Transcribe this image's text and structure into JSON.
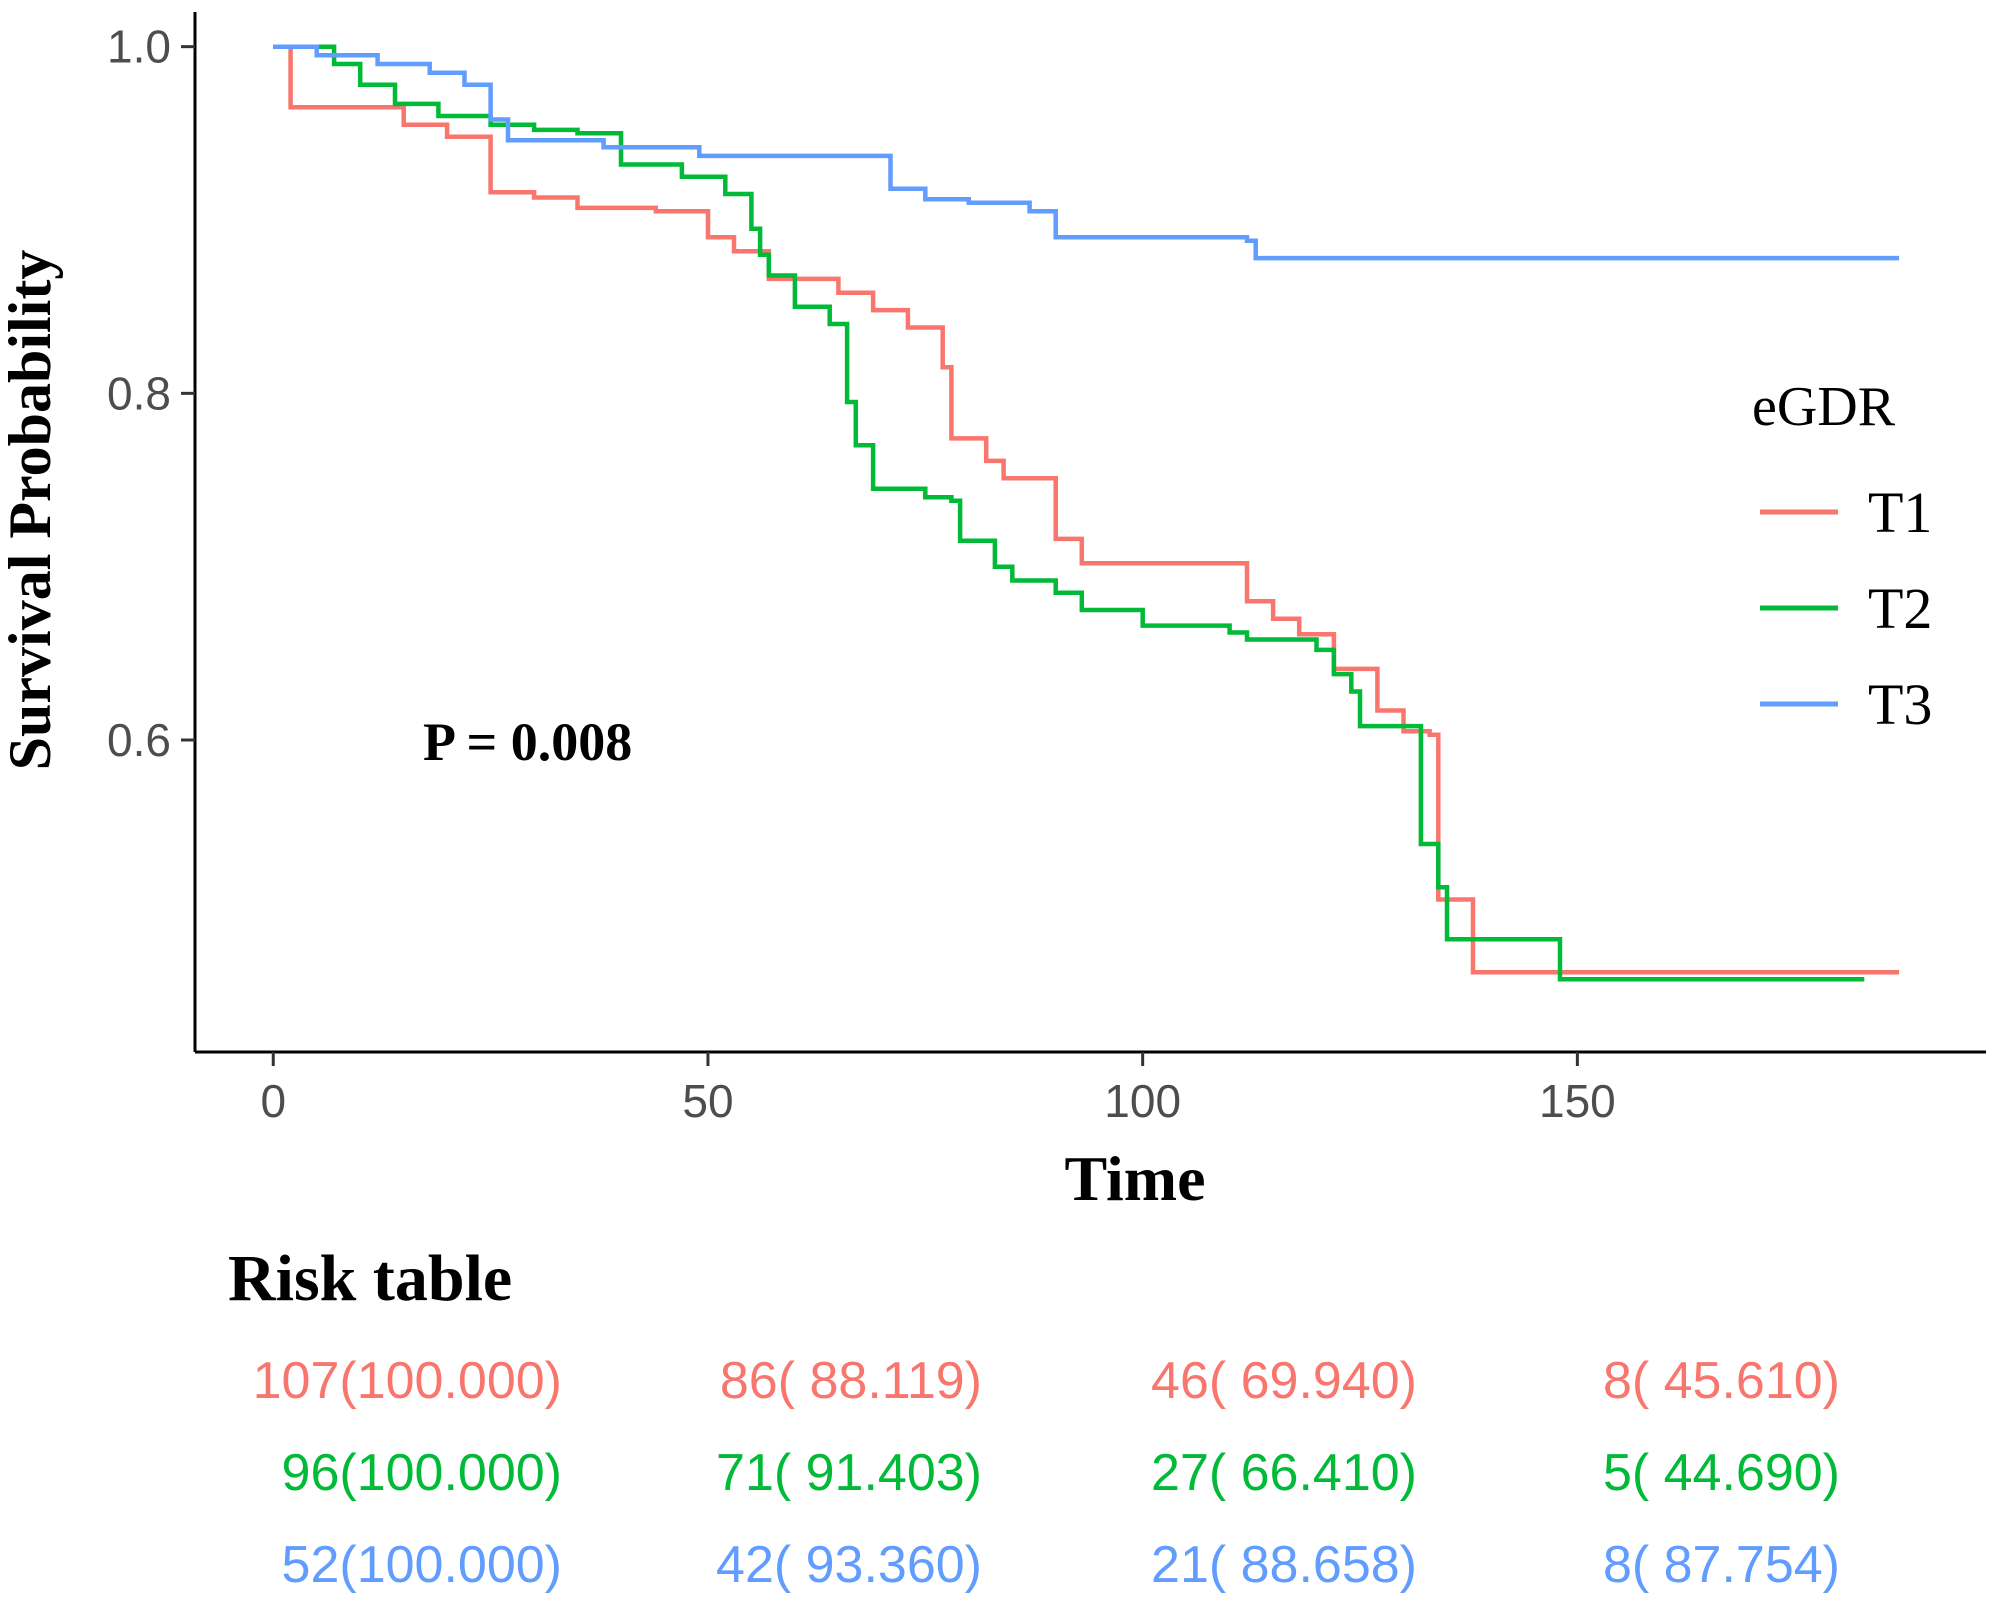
{
  "chart_data": {
    "type": "line",
    "subtype": "kaplan-meier",
    "title": "",
    "xlabel": "Time",
    "ylabel": "Survival Probability",
    "xlim": [
      -9,
      197
    ],
    "ylim": [
      0.42,
      1.02
    ],
    "x_ticks": [
      0,
      50,
      100,
      150
    ],
    "x_tick_labels": [
      "0",
      "50",
      "100",
      "150"
    ],
    "y_ticks": [
      0.6,
      0.8,
      1.0
    ],
    "y_tick_labels": [
      "0.6",
      "0.8",
      "1.0"
    ],
    "grid": false,
    "legend": {
      "title": "eGDR",
      "position": "right",
      "entries": [
        "T1",
        "T2",
        "T3"
      ]
    },
    "annotation": "P = 0.008",
    "series": [
      {
        "name": "T1",
        "color": "#F8766D",
        "points": [
          [
            0,
            1.0
          ],
          [
            2,
            0.965
          ],
          [
            11,
            0.965
          ],
          [
            15,
            0.955
          ],
          [
            20,
            0.948
          ],
          [
            25,
            0.916
          ],
          [
            30,
            0.913
          ],
          [
            35,
            0.907
          ],
          [
            44,
            0.905
          ],
          [
            50,
            0.89
          ],
          [
            53,
            0.882
          ],
          [
            57,
            0.866
          ],
          [
            60,
            0.866
          ],
          [
            65,
            0.858
          ],
          [
            69,
            0.848
          ],
          [
            73,
            0.838
          ],
          [
            77,
            0.815
          ],
          [
            78,
            0.774
          ],
          [
            82,
            0.761
          ],
          [
            84,
            0.751
          ],
          [
            89,
            0.751
          ],
          [
            90,
            0.716
          ],
          [
            93,
            0.702
          ],
          [
            110,
            0.702
          ],
          [
            112,
            0.68
          ],
          [
            115,
            0.67
          ],
          [
            118,
            0.661
          ],
          [
            122,
            0.641
          ],
          [
            124,
            0.641
          ],
          [
            127,
            0.617
          ],
          [
            130,
            0.605
          ],
          [
            133,
            0.603
          ],
          [
            134,
            0.508
          ],
          [
            137,
            0.508
          ],
          [
            138,
            0.466
          ],
          [
            187,
            0.466
          ]
        ]
      },
      {
        "name": "T2",
        "color": "#00BA38",
        "points": [
          [
            0,
            1.0
          ],
          [
            7,
            0.99
          ],
          [
            10,
            0.978
          ],
          [
            14,
            0.967
          ],
          [
            19,
            0.96
          ],
          [
            25,
            0.955
          ],
          [
            30,
            0.952
          ],
          [
            35,
            0.95
          ],
          [
            40,
            0.932
          ],
          [
            47,
            0.925
          ],
          [
            52,
            0.915
          ],
          [
            55,
            0.895
          ],
          [
            56,
            0.88
          ],
          [
            57,
            0.868
          ],
          [
            60,
            0.85
          ],
          [
            64,
            0.84
          ],
          [
            66,
            0.795
          ],
          [
            67,
            0.77
          ],
          [
            69,
            0.745
          ],
          [
            72,
            0.745
          ],
          [
            75,
            0.74
          ],
          [
            78,
            0.738
          ],
          [
            79,
            0.715
          ],
          [
            83,
            0.7
          ],
          [
            85,
            0.692
          ],
          [
            90,
            0.685
          ],
          [
            93,
            0.675
          ],
          [
            100,
            0.666
          ],
          [
            110,
            0.662
          ],
          [
            112,
            0.658
          ],
          [
            117,
            0.658
          ],
          [
            120,
            0.652
          ],
          [
            122,
            0.638
          ],
          [
            124,
            0.628
          ],
          [
            125,
            0.608
          ],
          [
            131,
            0.608
          ],
          [
            132,
            0.54
          ],
          [
            134,
            0.515
          ],
          [
            135,
            0.485
          ],
          [
            146,
            0.485
          ],
          [
            148,
            0.462
          ],
          [
            183,
            0.462
          ]
        ]
      },
      {
        "name": "T3",
        "color": "#619CFF",
        "points": [
          [
            0,
            1.0
          ],
          [
            5,
            0.995
          ],
          [
            12,
            0.99
          ],
          [
            18,
            0.985
          ],
          [
            22,
            0.978
          ],
          [
            25,
            0.958
          ],
          [
            27,
            0.946
          ],
          [
            34,
            0.946
          ],
          [
            38,
            0.942
          ],
          [
            45,
            0.942
          ],
          [
            49,
            0.937
          ],
          [
            70,
            0.937
          ],
          [
            71,
            0.918
          ],
          [
            75,
            0.912
          ],
          [
            80,
            0.91
          ],
          [
            87,
            0.905
          ],
          [
            90,
            0.89
          ],
          [
            112,
            0.888
          ],
          [
            113,
            0.878
          ],
          [
            187,
            0.878
          ]
        ]
      }
    ]
  },
  "risk_table": {
    "title": "Risk table",
    "rows": [
      {
        "group": "T1",
        "color": "#F8766D",
        "cells": [
          "107(100.000)",
          "86( 88.119)",
          "46( 69.940)",
          "8( 45.610)"
        ]
      },
      {
        "group": "T2",
        "color": "#00BA38",
        "cells": [
          "96(100.000)",
          "71( 91.403)",
          "27( 66.410)",
          "5( 44.690)"
        ]
      },
      {
        "group": "T3",
        "color": "#619CFF",
        "cells": [
          "52(100.000)",
          "42( 93.360)",
          "21( 88.658)",
          "8( 87.754)"
        ]
      }
    ]
  }
}
